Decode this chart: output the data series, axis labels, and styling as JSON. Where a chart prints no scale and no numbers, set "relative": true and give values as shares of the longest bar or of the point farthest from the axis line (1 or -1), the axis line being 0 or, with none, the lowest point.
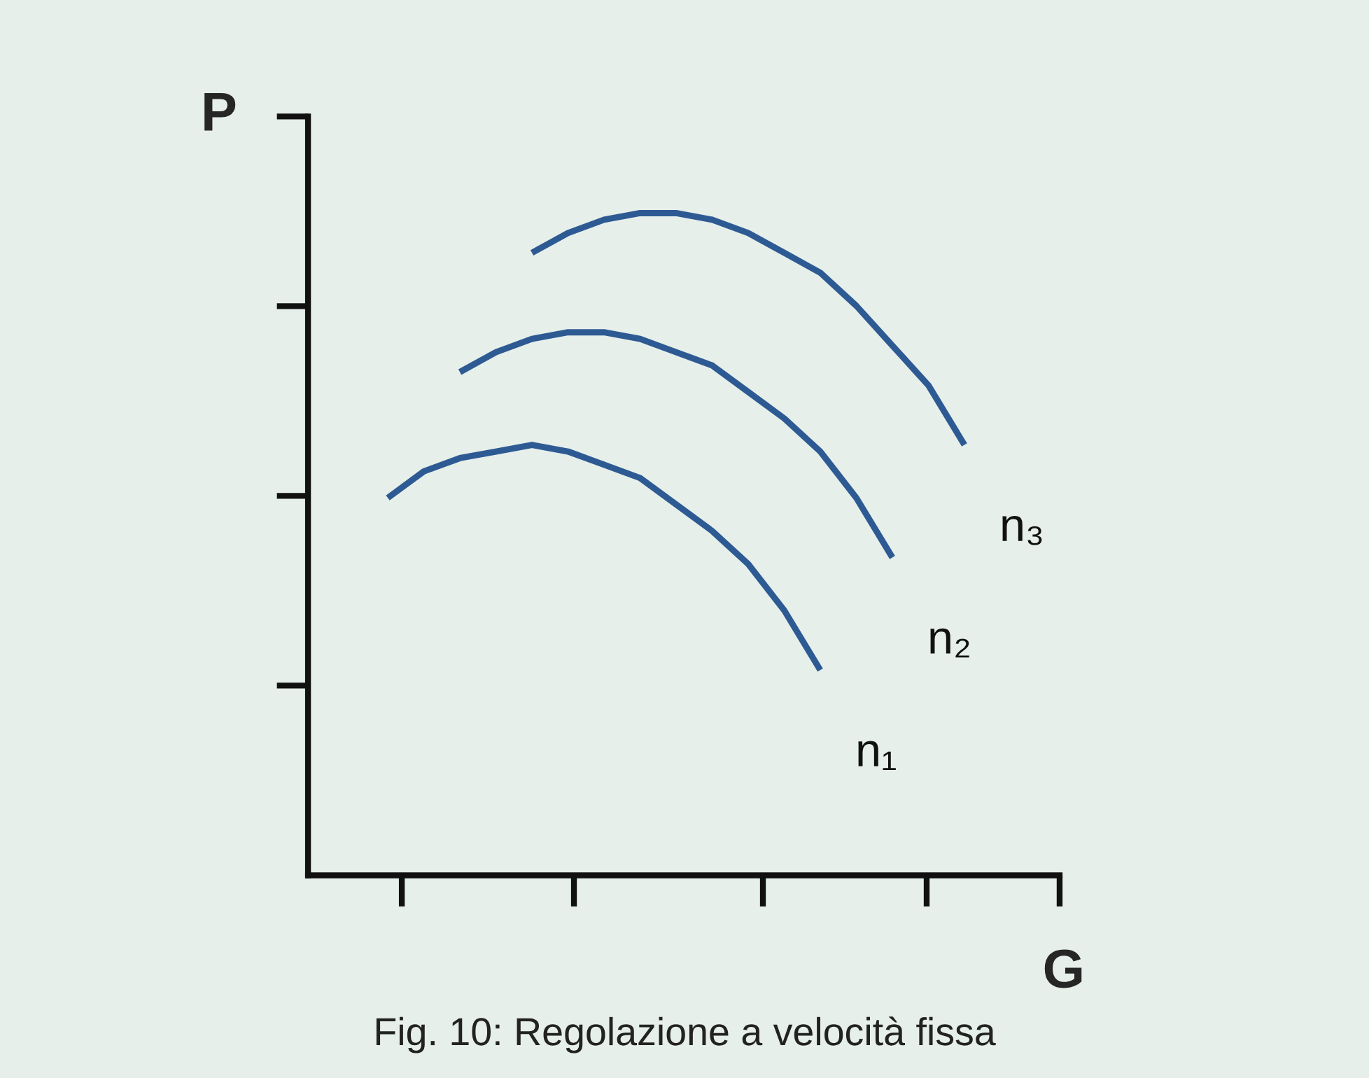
{
  "chart_data": {
    "type": "line",
    "relative": true,
    "xlabel": "G",
    "ylabel": "P",
    "categories": [
      null,
      null,
      null,
      null,
      null,
      null,
      null,
      null,
      null,
      null,
      null,
      null,
      null,
      null,
      null,
      null,
      null
    ],
    "series": [
      {
        "name": "n₁",
        "color": "#2e5a94",
        "values": [
          0.57,
          0.61,
          0.63,
          0.64,
          0.65,
          0.64,
          0.62,
          0.6,
          0.56,
          0.52,
          0.47,
          0.4,
          0.31,
          null,
          null,
          null,
          null
        ]
      },
      {
        "name": "n₂",
        "color": "#2e5a94",
        "values": [
          null,
          null,
          0.76,
          0.79,
          0.81,
          0.82,
          0.82,
          0.81,
          0.79,
          0.77,
          0.73,
          0.69,
          0.64,
          0.57,
          0.48,
          null,
          null
        ]
      },
      {
        "name": "n₃",
        "color": "#2e5a94",
        "values": [
          null,
          null,
          null,
          null,
          0.94,
          0.97,
          0.99,
          1,
          1,
          0.99,
          0.97,
          0.94,
          0.91,
          0.86,
          0.8,
          0.74,
          0.65
        ]
      }
    ],
    "annotations": [
      "Fig. 10: Regolazione a velocità fissa"
    ],
    "grid": false,
    "legend": false,
    "marker": "none",
    "line_style": "solid"
  }
}
